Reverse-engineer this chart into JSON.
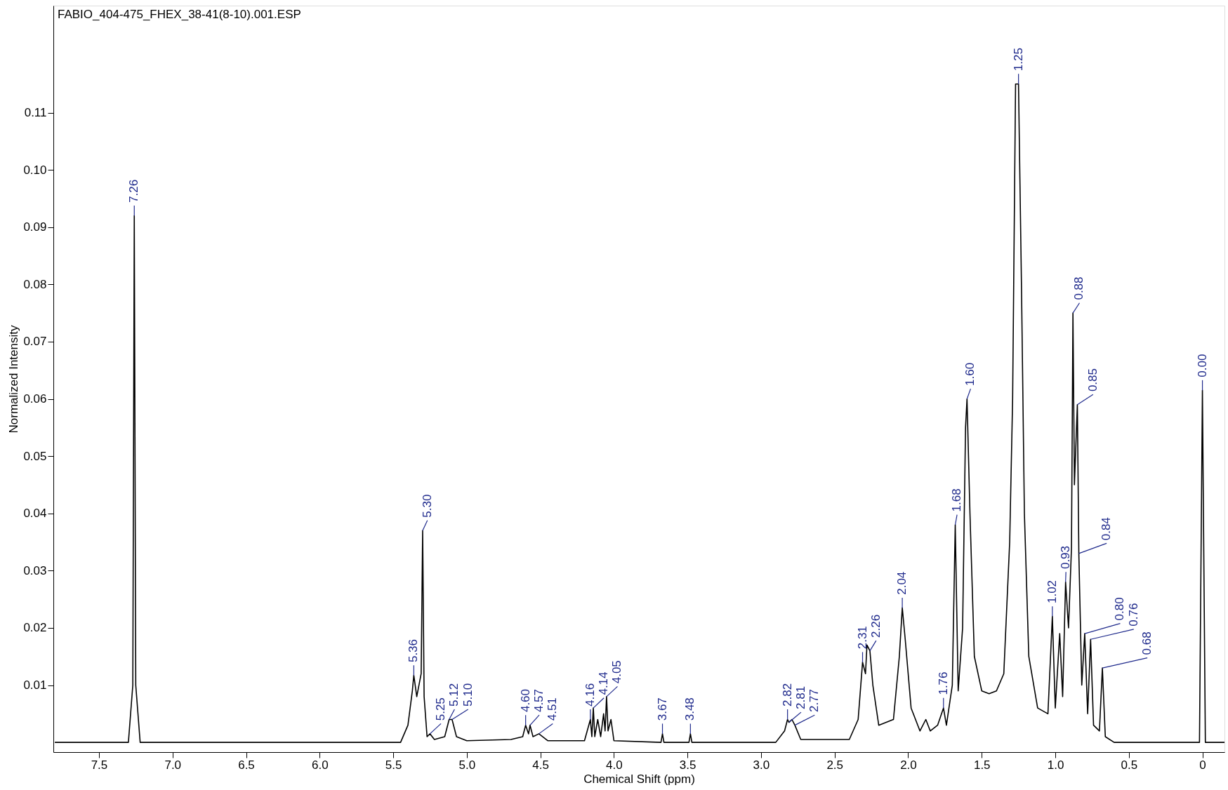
{
  "chart_data": {
    "type": "line",
    "title": "FABIO_404-475_FHEX_38-41(8-10).001.ESP",
    "xlabel": "Chemical Shift (ppm)",
    "ylabel": "Normalized Intensity",
    "xlim": [
      7.81,
      -0.15
    ],
    "ylim": [
      -0.0017,
      0.1287
    ],
    "xticks": [
      7.5,
      {
        "value": 7,
        "label": "7.0"
      },
      6.5,
      {
        "value": 6,
        "label": "6.0"
      },
      5.5,
      {
        "value": 5,
        "label": "5.0"
      },
      4.5,
      {
        "value": 4,
        "label": "4.0"
      },
      3.5,
      {
        "value": 3,
        "label": "3.0"
      },
      2.5,
      {
        "value": 2,
        "label": "2.0"
      },
      1.5,
      {
        "value": 1,
        "label": "1.0"
      },
      0.5,
      0
    ],
    "yticks": [
      0.01,
      0.02,
      0.03,
      0.04,
      0.05,
      0.06,
      0.07,
      0.08,
      0.09,
      {
        "value": 0.1,
        "label": "0.10"
      },
      0.11
    ],
    "grid": false,
    "marker": "none",
    "line_style": "solid",
    "series": [
      {
        "color": "#000000",
        "x": [
          7.8,
          7.3,
          7.27,
          7.26,
          7.25,
          7.22,
          5.45,
          5.4,
          5.37,
          5.36,
          5.34,
          5.31,
          5.3,
          5.29,
          5.27,
          5.25,
          5.22,
          5.15,
          5.12,
          5.1,
          5.07,
          5.0,
          4.7,
          4.62,
          4.6,
          4.58,
          4.57,
          4.55,
          4.51,
          4.45,
          4.2,
          4.16,
          4.15,
          4.14,
          4.13,
          4.11,
          4.09,
          4.07,
          4.06,
          4.05,
          4.04,
          4.02,
          4.0,
          3.68,
          3.67,
          3.66,
          3.49,
          3.48,
          3.47,
          2.9,
          2.84,
          2.82,
          2.81,
          2.79,
          2.77,
          2.73,
          2.4,
          2.34,
          2.31,
          2.29,
          2.28,
          2.26,
          2.24,
          2.2,
          2.1,
          2.06,
          2.04,
          2.02,
          1.98,
          1.92,
          1.88,
          1.85,
          1.8,
          1.76,
          1.74,
          1.7,
          1.68,
          1.66,
          1.63,
          1.61,
          1.6,
          1.58,
          1.55,
          1.5,
          1.45,
          1.4,
          1.35,
          1.31,
          1.29,
          1.27,
          1.25,
          1.23,
          1.21,
          1.18,
          1.12,
          1.05,
          1.02,
          1.0,
          0.97,
          0.95,
          0.93,
          0.91,
          0.89,
          0.88,
          0.87,
          0.85,
          0.84,
          0.82,
          0.8,
          0.78,
          0.76,
          0.74,
          0.7,
          0.68,
          0.66,
          0.6,
          0.02,
          0.0,
          -0.02,
          -0.15
        ],
        "values": [
          0,
          0,
          0.01,
          0.092,
          0.01,
          0,
          0,
          0.003,
          0.009,
          0.0117,
          0.008,
          0.012,
          0.037,
          0.008,
          0.001,
          0.0015,
          0.0005,
          0.001,
          0.004,
          0.004,
          0.001,
          0.0003,
          0.0005,
          0.001,
          0.003,
          0.0015,
          0.003,
          0.001,
          0.0015,
          0.0003,
          0.0003,
          0.004,
          0.001,
          0.006,
          0.001,
          0.004,
          0.001,
          0.005,
          0.002,
          0.008,
          0.002,
          0.004,
          0.0003,
          0,
          0.0015,
          0,
          0,
          0.0015,
          0,
          0,
          0.002,
          0.004,
          0.0035,
          0.004,
          0.003,
          0.0005,
          0.0005,
          0.004,
          0.014,
          0.012,
          0.017,
          0.016,
          0.01,
          0.003,
          0.004,
          0.015,
          0.0235,
          0.018,
          0.006,
          0.002,
          0.004,
          0.002,
          0.003,
          0.006,
          0.003,
          0.01,
          0.038,
          0.009,
          0.02,
          0.055,
          0.06,
          0.04,
          0.015,
          0.009,
          0.0085,
          0.009,
          0.012,
          0.035,
          0.06,
          0.115,
          0.115,
          0.08,
          0.04,
          0.015,
          0.006,
          0.005,
          0.022,
          0.006,
          0.019,
          0.008,
          0.028,
          0.02,
          0.034,
          0.075,
          0.045,
          0.059,
          0.033,
          0.01,
          0.019,
          0.005,
          0.018,
          0.003,
          0.002,
          0.013,
          0.001,
          0,
          0,
          0.0615,
          0,
          0
        ]
      }
    ],
    "annotations": [
      {
        "text": "7.26",
        "x": 7.26,
        "y": 0.092
      },
      {
        "text": "5.36",
        "x": 5.36,
        "y": 0.0117
      },
      {
        "text": "5.30",
        "x": 5.3,
        "y": 0.037
      },
      {
        "text": "5.25",
        "x": 5.25,
        "y": 0.0015
      },
      {
        "text": "5.12",
        "x": 5.12,
        "y": 0.004
      },
      {
        "text": "5.10",
        "x": 5.1,
        "y": 0.004
      },
      {
        "text": "4.60",
        "x": 4.6,
        "y": 0.003
      },
      {
        "text": "4.57",
        "x": 4.57,
        "y": 0.003
      },
      {
        "text": "4.51",
        "x": 4.51,
        "y": 0.0015
      },
      {
        "text": "4.16",
        "x": 4.16,
        "y": 0.004
      },
      {
        "text": "4.14",
        "x": 4.14,
        "y": 0.006
      },
      {
        "text": "4.05",
        "x": 4.05,
        "y": 0.008
      },
      {
        "text": "3.67",
        "x": 3.67,
        "y": 0.0015
      },
      {
        "text": "3.48",
        "x": 3.48,
        "y": 0.0015
      },
      {
        "text": "2.82",
        "x": 2.82,
        "y": 0.004
      },
      {
        "text": "2.81",
        "x": 2.81,
        "y": 0.0035
      },
      {
        "text": "2.77",
        "x": 2.77,
        "y": 0.003
      },
      {
        "text": "2.31",
        "x": 2.31,
        "y": 0.014
      },
      {
        "text": "2.26",
        "x": 2.26,
        "y": 0.016
      },
      {
        "text": "2.04",
        "x": 2.04,
        "y": 0.0235
      },
      {
        "text": "1.76",
        "x": 1.76,
        "y": 0.006
      },
      {
        "text": "1.68",
        "x": 1.68,
        "y": 0.038
      },
      {
        "text": "1.60",
        "x": 1.6,
        "y": 0.06
      },
      {
        "text": "1.25",
        "x": 1.25,
        "y": 0.115
      },
      {
        "text": "1.02",
        "x": 1.02,
        "y": 0.022
      },
      {
        "text": "0.93",
        "x": 0.93,
        "y": 0.028
      },
      {
        "text": "0.88",
        "x": 0.88,
        "y": 0.075
      },
      {
        "text": "0.85",
        "x": 0.85,
        "y": 0.059
      },
      {
        "text": "0.84",
        "x": 0.84,
        "y": 0.033
      },
      {
        "text": "0.80",
        "x": 0.8,
        "y": 0.019
      },
      {
        "text": "0.76",
        "x": 0.76,
        "y": 0.018
      },
      {
        "text": "0.68",
        "x": 0.68,
        "y": 0.013
      },
      {
        "text": "0.00",
        "x": 0.0,
        "y": 0.0615
      }
    ]
  }
}
